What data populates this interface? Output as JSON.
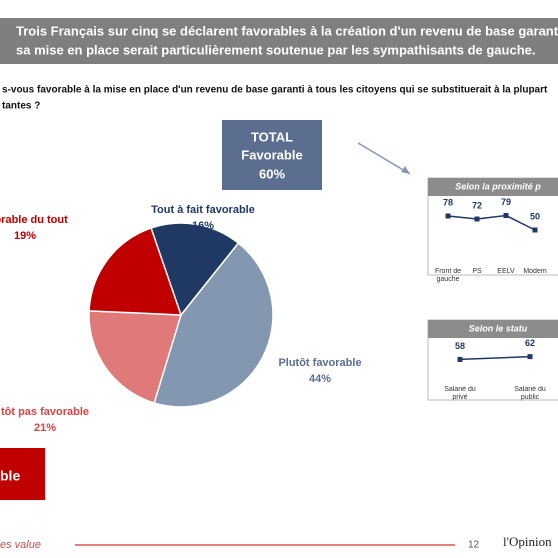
{
  "header": {
    "lines": [
      "Trois Français sur cinq se déclarent favorables à la création d'un revenu de base garanti à to",
      "sa mise en place serait particulièrement soutenue par les sympathisants de gauche."
    ]
  },
  "question": {
    "lines": [
      "s-vous favorable à la mise en place d'un revenu de base garanti à tous les citoyens qui se substituerait à la plupart",
      "tantes ?"
    ]
  },
  "total_box": {
    "lines": [
      "TOTAL",
      "Favorable",
      "60%"
    ]
  },
  "side_box": {
    "text": "ble"
  },
  "footer": {
    "text": "es value",
    "page": "12",
    "logo": "l'Opinion"
  },
  "chart_data": [
    {
      "type": "pie",
      "categories": [
        "Tout à fait favorable",
        "Plutôt favorable",
        "tôt pas favorable",
        "avorable du tout"
      ],
      "values": [
        16,
        44,
        21,
        19
      ],
      "value_labels": [
        "16%",
        "44%",
        "21%",
        "19%"
      ],
      "colors": [
        "#1f3864",
        "#8497b0",
        "#e07a7a",
        "#c00000"
      ]
    },
    {
      "type": "line",
      "title": "Selon la proximité p",
      "categories": [
        "Front de gauche",
        "PS",
        "EELV",
        "Modem"
      ],
      "values": [
        78,
        72,
        79,
        50
      ],
      "color": "#1f3864",
      "ylim": [
        0,
        100
      ]
    },
    {
      "type": "line",
      "title": "Selon le statu",
      "categories": [
        "Salarié du privé",
        "Salarié du public"
      ],
      "values": [
        58,
        62
      ],
      "color": "#1f3864",
      "ylim": [
        0,
        100
      ]
    }
  ]
}
